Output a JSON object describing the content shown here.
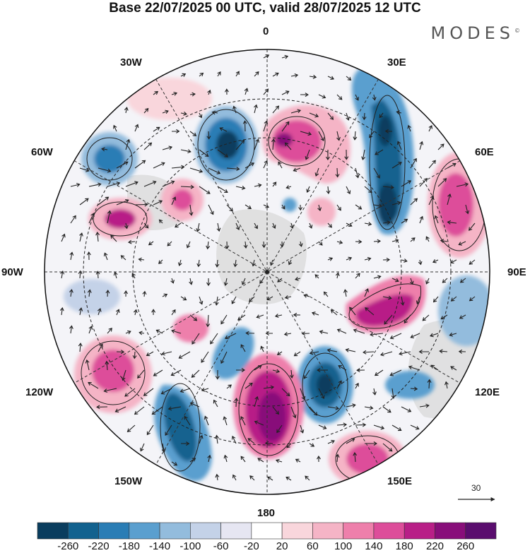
{
  "title": "Base 22/07/2025 00 UTC, valid 28/07/2025 12 UTC",
  "brand": "MODES",
  "brand_mark": "©",
  "meridian_labels": {
    "lon_0": "0",
    "lon_30e": "30E",
    "lon_60e": "60E",
    "lon_90e": "90E",
    "lon_120e": "120E",
    "lon_150e": "150E",
    "lon_180": "180",
    "lon_150w": "150W",
    "lon_120w": "120W",
    "lon_90w": "90W",
    "lon_60w": "60W",
    "lon_30w": "30W"
  },
  "wind_scale": {
    "value": "30"
  },
  "colorbar": {
    "levels": [
      "-260",
      "-220",
      "-180",
      "-140",
      "-100",
      "-60",
      "-20",
      "20",
      "60",
      "100",
      "140",
      "180",
      "220",
      "260"
    ],
    "colors": [
      "#0a3d5e",
      "#12628f",
      "#2a7db5",
      "#5a9fcf",
      "#93bcdd",
      "#c4d2e8",
      "#e6e6f2",
      "#ffffff",
      "#f9d6dc",
      "#f5b4c6",
      "#ee7fab",
      "#dd4d9a",
      "#b81f87",
      "#880e7a",
      "#5a0d6e"
    ]
  },
  "palette": {
    "land": "#d9d9d9",
    "grid": "#333333",
    "coast": "#666666"
  }
}
